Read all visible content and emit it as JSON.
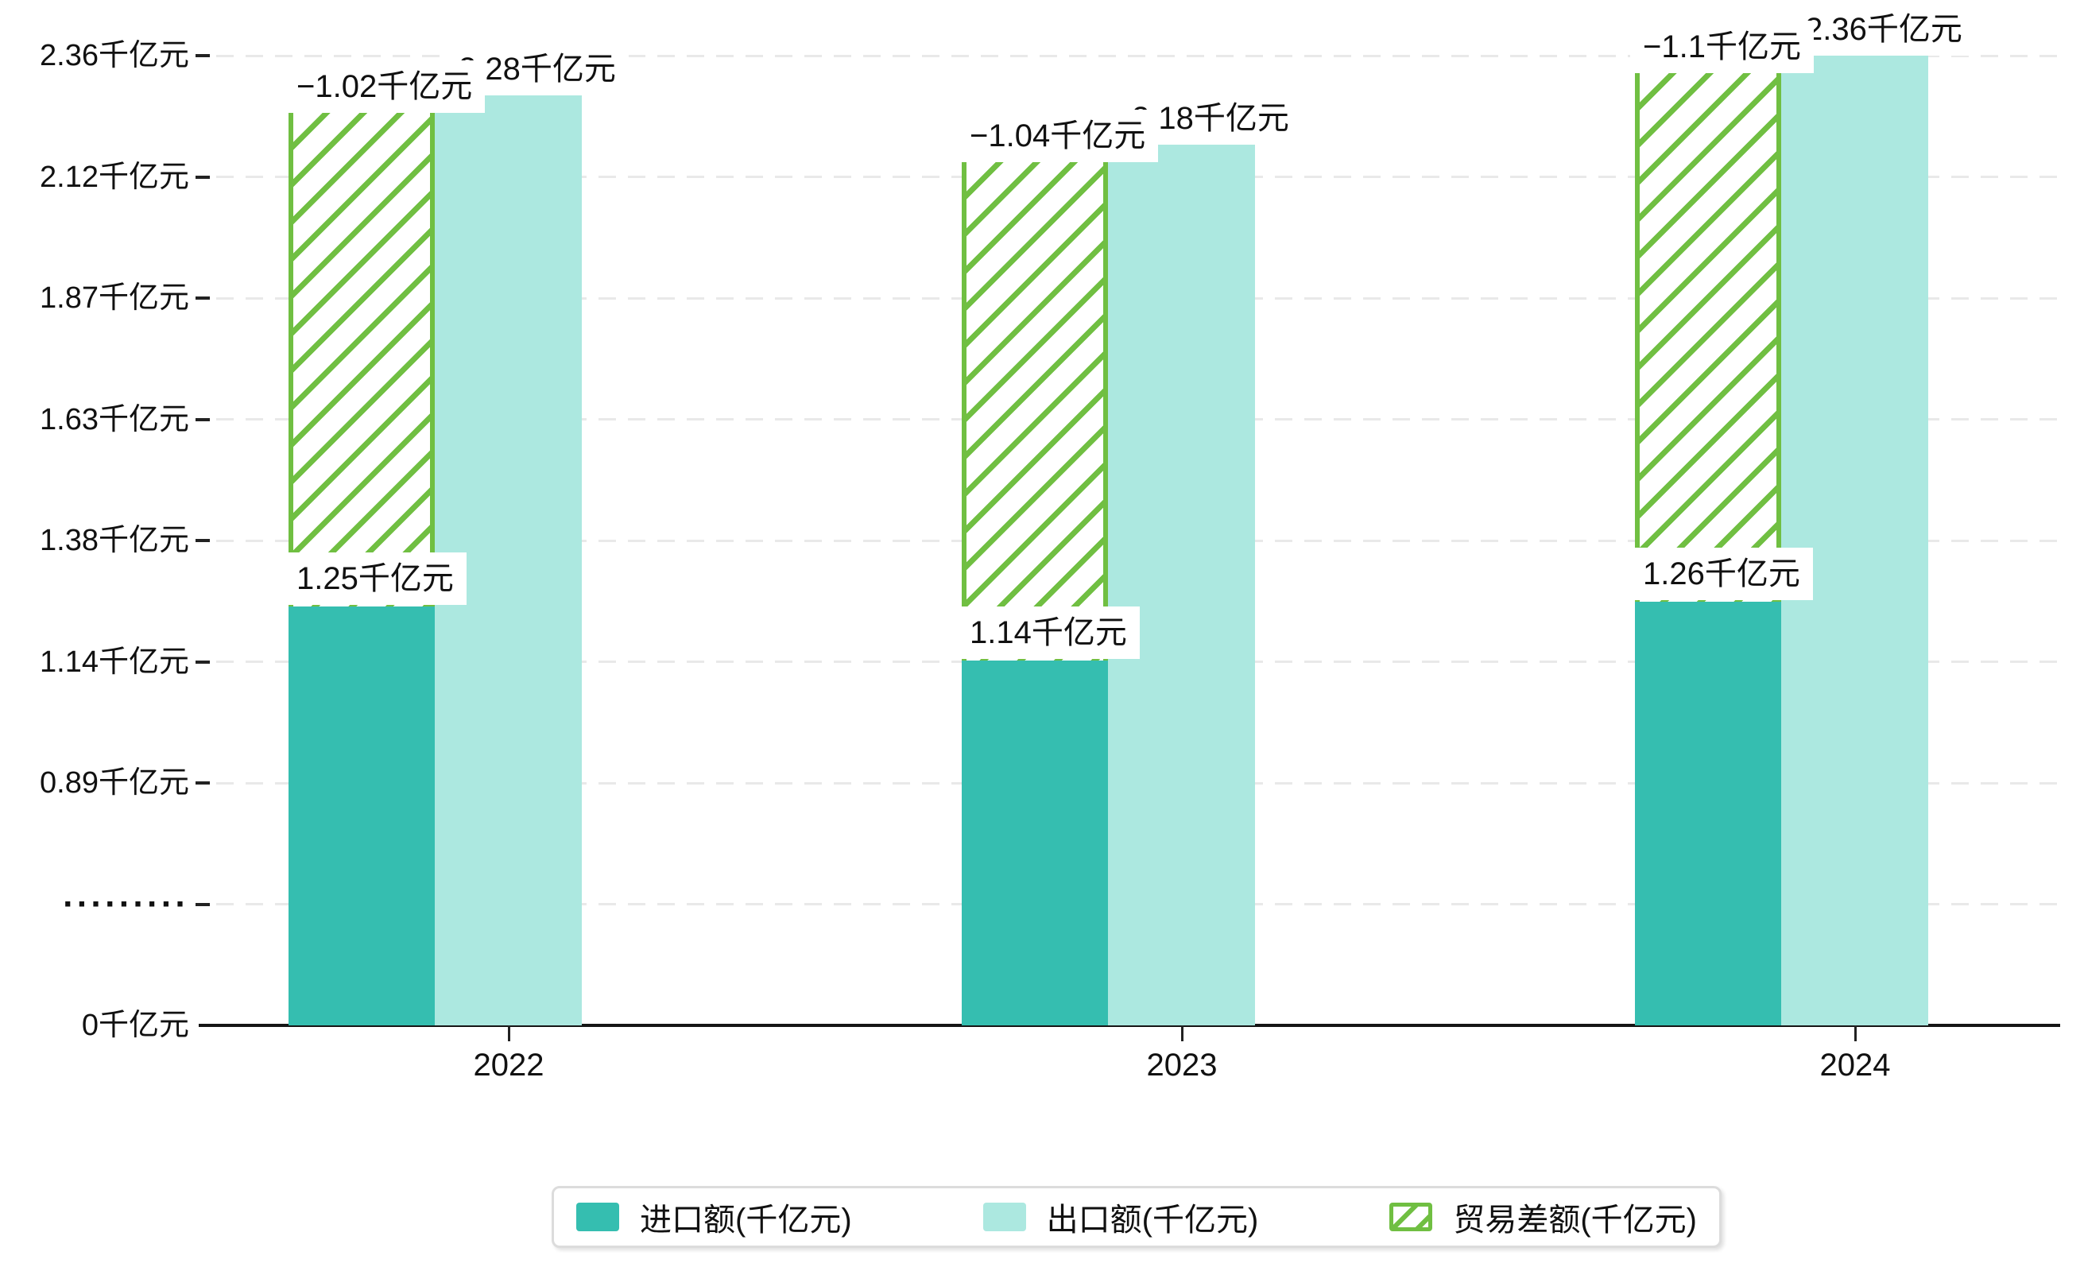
{
  "chart": {
    "background": "#ffffff",
    "text_color": "#111111",
    "grid_color": "#e9e9e9",
    "axis_color": "#151515",
    "label_box_color": "#ffffff"
  },
  "chart_data": {
    "type": "bar",
    "title": "",
    "unit": "千亿元",
    "categories": [
      "2022",
      "2023",
      "2024"
    ],
    "series": [
      {
        "name": "进口额(千亿元)",
        "kind": "column",
        "color": "#35beb0",
        "values": [
          1.25,
          1.14,
          1.26
        ],
        "data_labels": [
          "1.25千亿元",
          "1.14千亿元",
          "1.26千亿元"
        ]
      },
      {
        "name": "出口额(千亿元)",
        "kind": "column",
        "color": "#ace8e0",
        "values": [
          2.28,
          2.18,
          2.36
        ],
        "data_labels": [
          "2.28千亿元",
          "2.18千亿元",
          "2.36千亿元"
        ]
      },
      {
        "name": "贸易差额(千亿元)",
        "kind": "hatched-range",
        "color": "#70bf42",
        "values": [
          -1.02,
          -1.04,
          -1.1
        ],
        "data_labels": [
          "−1.02千亿元",
          "−1.04千亿元",
          "−1.1千亿元"
        ],
        "note": "floating hatched bar spanning from import-bar top to export-bar top"
      }
    ],
    "yaxis": {
      "tick_labels": [
        "2.36千亿元",
        "2.12千亿元",
        "1.87千亿元",
        "1.63千亿元",
        "1.38千亿元",
        "1.14千亿元",
        "0.89千亿元",
        "·········",
        "0千亿元"
      ],
      "tick_values": [
        2.36,
        2.12,
        1.87,
        1.63,
        1.38,
        1.14,
        0.89,
        null,
        0
      ],
      "axis_break": true,
      "grid": "dashed horizontal"
    },
    "xaxis": {
      "tick_labels": [
        "2022",
        "2023",
        "2024"
      ]
    },
    "legend": {
      "position": "bottom",
      "entries": [
        "进口额(千亿元)",
        "出口额(千亿元)",
        "贸易差额(千亿元)"
      ]
    }
  }
}
